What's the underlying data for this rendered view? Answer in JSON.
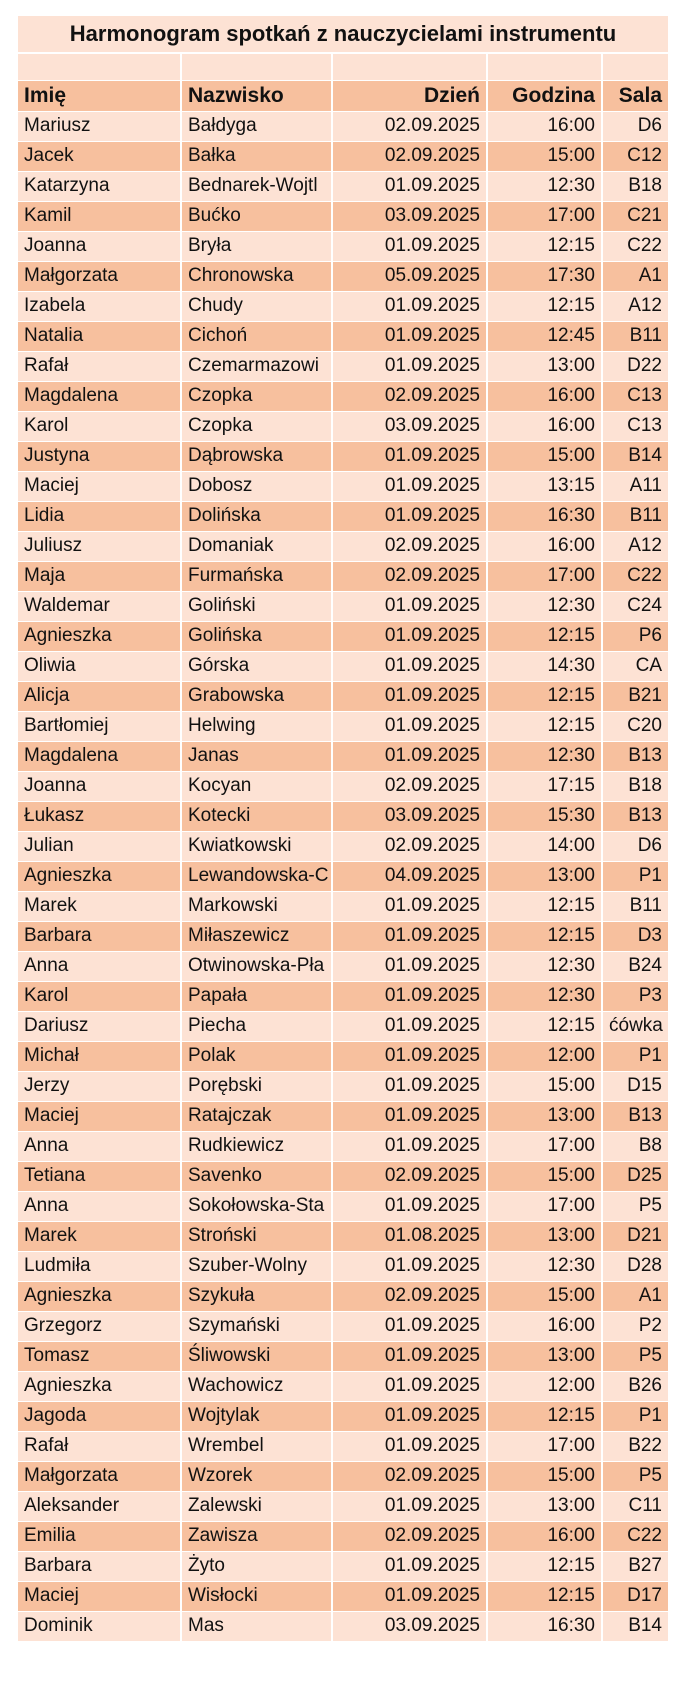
{
  "title": "Harmonogram spotkań z nauczycielami instrumentu",
  "colors": {
    "light_row": "#fde2d4",
    "dark_row": "#f7c09e"
  },
  "headers": {
    "imie": "Imię",
    "nazwisko": "Nazwisko",
    "dzien": "Dzień",
    "godzina": "Godzina",
    "sala": "Sala"
  },
  "rows": [
    {
      "imie": "Mariusz",
      "nazwisko": "Bałdyga",
      "dzien": "02.09.2025",
      "godzina": "16:00",
      "sala": "D6"
    },
    {
      "imie": "Jacek",
      "nazwisko": "Bałka",
      "dzien": "02.09.2025",
      "godzina": "15:00",
      "sala": "C12"
    },
    {
      "imie": "Katarzyna",
      "nazwisko": "Bednarek-Wojtl",
      "dzien": "01.09.2025",
      "godzina": "12:30",
      "sala": "B18"
    },
    {
      "imie": "Kamil",
      "nazwisko": "Bućko",
      "dzien": "03.09.2025",
      "godzina": "17:00",
      "sala": "C21"
    },
    {
      "imie": "Joanna",
      "nazwisko": "Bryła",
      "dzien": "01.09.2025",
      "godzina": "12:15",
      "sala": "C22"
    },
    {
      "imie": "Małgorzata",
      "nazwisko": "Chronowska",
      "dzien": "05.09.2025",
      "godzina": "17:30",
      "sala": "A1"
    },
    {
      "imie": "Izabela",
      "nazwisko": "Chudy",
      "dzien": "01.09.2025",
      "godzina": "12:15",
      "sala": "A12"
    },
    {
      "imie": "Natalia",
      "nazwisko": "Cichoń",
      "dzien": "01.09.2025",
      "godzina": "12:45",
      "sala": "B11"
    },
    {
      "imie": "Rafał",
      "nazwisko": "Czemarmazowi",
      "dzien": "01.09.2025",
      "godzina": "13:00",
      "sala": "D22"
    },
    {
      "imie": "Magdalena",
      "nazwisko": "Czopka",
      "dzien": "02.09.2025",
      "godzina": "16:00",
      "sala": "C13"
    },
    {
      "imie": "Karol",
      "nazwisko": "Czopka",
      "dzien": "03.09.2025",
      "godzina": "16:00",
      "sala": "C13"
    },
    {
      "imie": "Justyna",
      "nazwisko": "Dąbrowska",
      "dzien": "01.09.2025",
      "godzina": "15:00",
      "sala": "B14"
    },
    {
      "imie": "Maciej",
      "nazwisko": "Dobosz",
      "dzien": "01.09.2025",
      "godzina": "13:15",
      "sala": "A11"
    },
    {
      "imie": "Lidia",
      "nazwisko": "Dolińska",
      "dzien": "01.09.2025",
      "godzina": "16:30",
      "sala": "B11"
    },
    {
      "imie": "Juliusz",
      "nazwisko": "Domaniak",
      "dzien": "02.09.2025",
      "godzina": "16:00",
      "sala": "A12"
    },
    {
      "imie": "Maja",
      "nazwisko": "Furmańska",
      "dzien": "02.09.2025",
      "godzina": "17:00",
      "sala": "C22"
    },
    {
      "imie": "Waldemar",
      "nazwisko": "Goliński",
      "dzien": "01.09.2025",
      "godzina": "12:30",
      "sala": "C24"
    },
    {
      "imie": "Agnieszka",
      "nazwisko": "Golińska",
      "dzien": "01.09.2025",
      "godzina": "12:15",
      "sala": "P6"
    },
    {
      "imie": "Oliwia",
      "nazwisko": "Górska",
      "dzien": "01.09.2025",
      "godzina": "14:30",
      "sala": "CA"
    },
    {
      "imie": "Alicja",
      "nazwisko": "Grabowska",
      "dzien": "01.09.2025",
      "godzina": "12:15",
      "sala": "B21"
    },
    {
      "imie": "Bartłomiej",
      "nazwisko": "Helwing",
      "dzien": "01.09.2025",
      "godzina": "12:15",
      "sala": "C20"
    },
    {
      "imie": "Magdalena",
      "nazwisko": "Janas",
      "dzien": "01.09.2025",
      "godzina": "12:30",
      "sala": "B13"
    },
    {
      "imie": "Joanna",
      "nazwisko": "Kocyan",
      "dzien": "02.09.2025",
      "godzina": "17:15",
      "sala": "B18"
    },
    {
      "imie": "Łukasz",
      "nazwisko": "Kotecki",
      "dzien": "03.09.2025",
      "godzina": "15:30",
      "sala": "B13"
    },
    {
      "imie": "Julian",
      "nazwisko": "Kwiatkowski",
      "dzien": "02.09.2025",
      "godzina": "14:00",
      "sala": "D6"
    },
    {
      "imie": "Agnieszka",
      "nazwisko": "Lewandowska-C",
      "dzien": "04.09.2025",
      "godzina": "13:00",
      "sala": "P1"
    },
    {
      "imie": "Marek",
      "nazwisko": "Markowski",
      "dzien": "01.09.2025",
      "godzina": "12:15",
      "sala": "B11"
    },
    {
      "imie": "Barbara",
      "nazwisko": "Miłaszewicz",
      "dzien": "01.09.2025",
      "godzina": "12:15",
      "sala": "D3"
    },
    {
      "imie": "Anna",
      "nazwisko": "Otwinowska-Pła",
      "dzien": "01.09.2025",
      "godzina": "12:30",
      "sala": "B24"
    },
    {
      "imie": "Karol",
      "nazwisko": "Papała",
      "dzien": "01.09.2025",
      "godzina": "12:30",
      "sala": "P3"
    },
    {
      "imie": "Dariusz",
      "nazwisko": "Piecha",
      "dzien": "01.09.2025",
      "godzina": "12:15",
      "sala": "ćówka"
    },
    {
      "imie": "Michał",
      "nazwisko": "Polak",
      "dzien": "01.09.2025",
      "godzina": "12:00",
      "sala": "P1"
    },
    {
      "imie": "Jerzy",
      "nazwisko": "Porębski",
      "dzien": "01.09.2025",
      "godzina": "15:00",
      "sala": "D15"
    },
    {
      "imie": "Maciej",
      "nazwisko": "Ratajczak",
      "dzien": "01.09.2025",
      "godzina": "13:00",
      "sala": "B13"
    },
    {
      "imie": "Anna",
      "nazwisko": "Rudkiewicz",
      "dzien": "01.09.2025",
      "godzina": "17:00",
      "sala": "B8"
    },
    {
      "imie": "Tetiana",
      "nazwisko": "Savenko",
      "dzien": "02.09.2025",
      "godzina": "15:00",
      "sala": "D25"
    },
    {
      "imie": "Anna",
      "nazwisko": "Sokołowska-Sta",
      "dzien": "01.09.2025",
      "godzina": "17:00",
      "sala": "P5"
    },
    {
      "imie": "Marek",
      "nazwisko": "Stroński",
      "dzien": "01.08.2025",
      "godzina": "13:00",
      "sala": "D21"
    },
    {
      "imie": "Ludmiła",
      "nazwisko": "Szuber-Wolny",
      "dzien": "01.09.2025",
      "godzina": "12:30",
      "sala": "D28"
    },
    {
      "imie": "Agnieszka",
      "nazwisko": "Szykuła",
      "dzien": "02.09.2025",
      "godzina": "15:00",
      "sala": "A1"
    },
    {
      "imie": "Grzegorz",
      "nazwisko": "Szymański",
      "dzien": "01.09.2025",
      "godzina": "16:00",
      "sala": "P2"
    },
    {
      "imie": "Tomasz",
      "nazwisko": "Śliwowski",
      "dzien": "01.09.2025",
      "godzina": "13:00",
      "sala": "P5"
    },
    {
      "imie": "Agnieszka",
      "nazwisko": "Wachowicz",
      "dzien": "01.09.2025",
      "godzina": "12:00",
      "sala": "B26"
    },
    {
      "imie": "Jagoda",
      "nazwisko": "Wojtylak",
      "dzien": "01.09.2025",
      "godzina": "12:15",
      "sala": "P1"
    },
    {
      "imie": "Rafał",
      "nazwisko": "Wrembel",
      "dzien": "01.09.2025",
      "godzina": "17:00",
      "sala": "B22"
    },
    {
      "imie": "Małgorzata",
      "nazwisko": "Wzorek",
      "dzien": "02.09.2025",
      "godzina": "15:00",
      "sala": "P5"
    },
    {
      "imie": "Aleksander",
      "nazwisko": "Zalewski",
      "dzien": "01.09.2025",
      "godzina": "13:00",
      "sala": "C11"
    },
    {
      "imie": "Emilia",
      "nazwisko": "Zawisza",
      "dzien": "02.09.2025",
      "godzina": "16:00",
      "sala": "C22"
    },
    {
      "imie": "Barbara",
      "nazwisko": "Żyto",
      "dzien": "01.09.2025",
      "godzina": "12:15",
      "sala": "B27"
    },
    {
      "imie": "Maciej",
      "nazwisko": "Wisłocki",
      "dzien": "01.09.2025",
      "godzina": "12:15",
      "sala": "D17"
    },
    {
      "imie": "Dominik",
      "nazwisko": "Mas",
      "dzien": "03.09.2025",
      "godzina": "16:30",
      "sala": "B14"
    }
  ]
}
